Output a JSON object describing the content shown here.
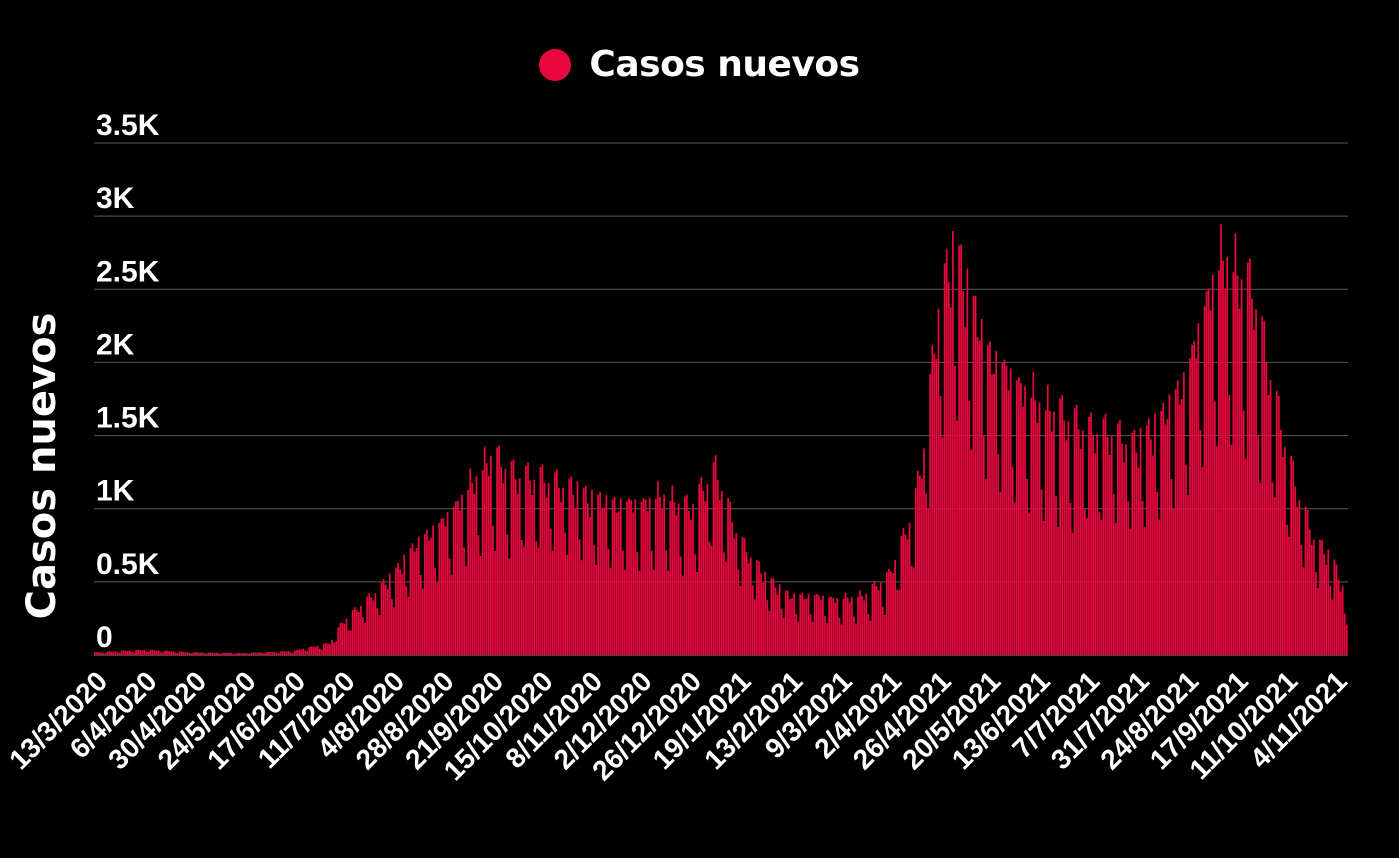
{
  "chart_data": {
    "type": "bar",
    "title": "",
    "xlabel": "",
    "ylabel": "Casos nuevos",
    "legend": {
      "position": "top-center",
      "entries": [
        "Casos nuevos"
      ]
    },
    "ylim": [
      0,
      3500
    ],
    "yticks": [
      0,
      500,
      1000,
      1500,
      2000,
      2500,
      3000,
      3500
    ],
    "ytick_labels": [
      "0",
      "0.5K",
      "1K",
      "1.5K",
      "2K",
      "2.5K",
      "3K",
      "3.5K"
    ],
    "grid": true,
    "x_tick_labels": [
      "13/3/2020",
      "6/4/2020",
      "30/4/2020",
      "24/5/2020",
      "17/6/2020",
      "11/7/2020",
      "4/8/2020",
      "28/8/2020",
      "21/9/2020",
      "15/10/2020",
      "8/11/2020",
      "2/12/2020",
      "26/12/2020",
      "19/1/2021",
      "13/2/2021",
      "9/3/2021",
      "2/4/2021",
      "26/4/2021",
      "20/5/2021",
      "13/6/2021",
      "7/7/2021",
      "31/7/2021",
      "24/8/2021",
      "17/9/2021",
      "11/10/2021",
      "4/11/2021"
    ],
    "x_range": [
      "2020-03-13",
      "2021-11-10"
    ],
    "series": [
      {
        "name": "Casos nuevos",
        "color": "#e8083e",
        "weekly_peak_envelope": {
          "dates": [
            "2020-03-13",
            "2020-04-06",
            "2020-04-30",
            "2020-05-24",
            "2020-06-17",
            "2020-07-05",
            "2020-07-11",
            "2020-07-20",
            "2020-08-04",
            "2020-08-16",
            "2020-08-28",
            "2020-09-10",
            "2020-09-21",
            "2020-10-03",
            "2020-10-15",
            "2020-10-27",
            "2020-11-08",
            "2020-11-20",
            "2020-12-02",
            "2020-12-14",
            "2020-12-26",
            "2021-01-08",
            "2021-01-19",
            "2021-02-01",
            "2021-02-13",
            "2021-02-25",
            "2021-03-09",
            "2021-03-21",
            "2021-04-02",
            "2021-04-14",
            "2021-04-20",
            "2021-04-26",
            "2021-05-04",
            "2021-05-12",
            "2021-05-20",
            "2021-06-01",
            "2021-06-13",
            "2021-06-25",
            "2021-07-07",
            "2021-07-19",
            "2021-07-31",
            "2021-08-12",
            "2021-08-24",
            "2021-09-05",
            "2021-09-12",
            "2021-09-17",
            "2021-09-26",
            "2021-10-04",
            "2021-10-11",
            "2021-10-18",
            "2021-10-25",
            "2021-11-04",
            "2021-11-10"
          ],
          "values": [
            20,
            40,
            20,
            15,
            30,
            90,
            250,
            380,
            600,
            850,
            1000,
            1250,
            1500,
            1350,
            1350,
            1300,
            1200,
            1150,
            1150,
            1200,
            1100,
            1400,
            900,
            600,
            450,
            450,
            420,
            450,
            600,
            1100,
            1700,
            2700,
            3100,
            2700,
            2300,
            2100,
            1900,
            1800,
            1700,
            1700,
            1600,
            1800,
            2100,
            2800,
            3000,
            2900,
            2700,
            2100,
            1600,
            1200,
            900,
            700,
            400
          ]
        },
        "weekday_trough_ratio": 0.55
      }
    ]
  }
}
